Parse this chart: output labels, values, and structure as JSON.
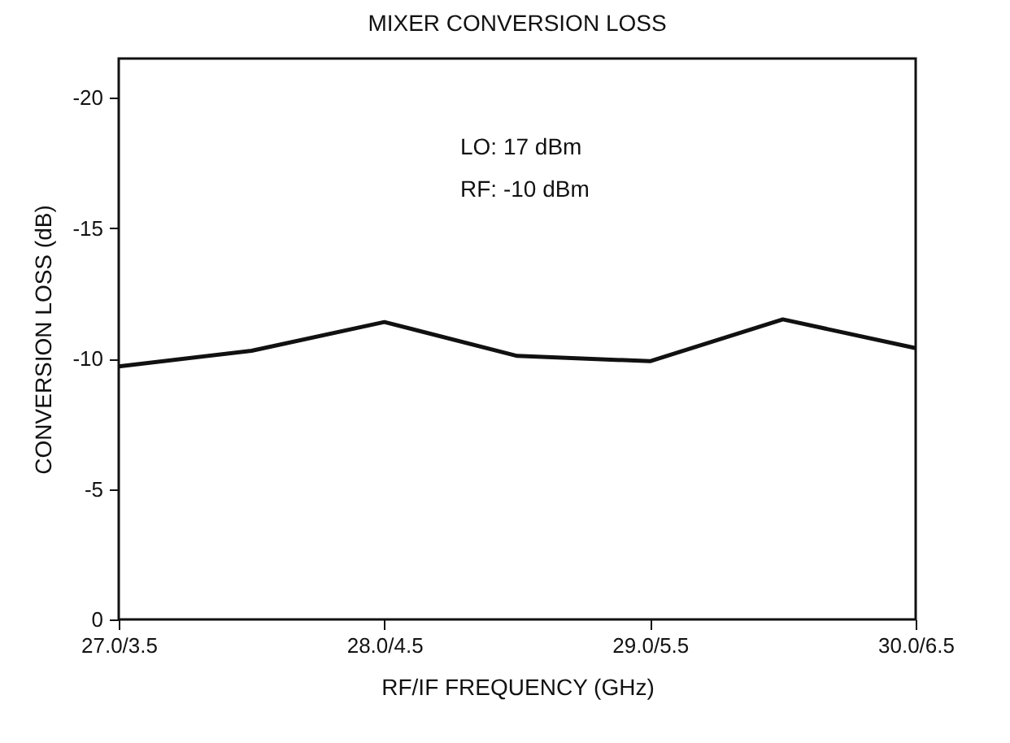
{
  "chart_data": {
    "type": "line",
    "title": "MIXER CONVERSION LOSS",
    "xlabel": "RF/IF FREQUENCY (GHz)",
    "ylabel": "CONVERSION LOSS (dB)",
    "categories": [
      "27.0/3.5",
      null,
      "28.0/4.5",
      null,
      "29.0/5.5",
      null,
      "30.0/6.5"
    ],
    "series": [
      {
        "color": "#111111",
        "values": [
          -9.7,
          -10.3,
          -11.4,
          -10.1,
          -9.9,
          -11.5,
          -10.4
        ]
      }
    ],
    "ylim": [
      0,
      -21.5
    ],
    "yticks": [
      0,
      -5,
      -10,
      -15,
      -20
    ],
    "annotations": [
      "LO:  17 dBm",
      "RF:  -10 dBm"
    ],
    "grid": false,
    "marker": "none",
    "line_style": "solid"
  }
}
